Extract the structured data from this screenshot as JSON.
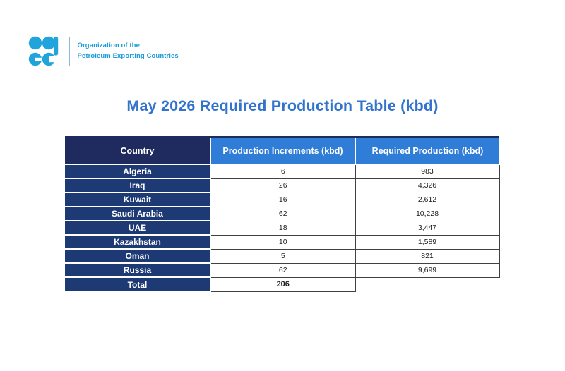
{
  "logo": {
    "line1": "Organization of the",
    "line2": "Petroleum Exporting Countries",
    "brand_color": "#1a9cd8"
  },
  "title": {
    "text": "May 2026 Required Production Table (kbd)",
    "color": "#3273cc"
  },
  "table": {
    "columns": [
      "Country",
      "Production Increments (kbd)",
      "Required Production (kbd)"
    ],
    "rows": [
      {
        "country": "Algeria",
        "increment": "6",
        "required": "983"
      },
      {
        "country": "Iraq",
        "increment": "26",
        "required": "4,326"
      },
      {
        "country": "Kuwait",
        "increment": "16",
        "required": "2,612"
      },
      {
        "country": "Saudi Arabia",
        "increment": "62",
        "required": "10,228"
      },
      {
        "country": "UAE",
        "increment": "18",
        "required": "3,447"
      },
      {
        "country": "Kazakhstan",
        "increment": "10",
        "required": "1,589"
      },
      {
        "country": "Oman",
        "increment": "5",
        "required": "821"
      },
      {
        "country": "Russia",
        "increment": "62",
        "required": "9,699"
      }
    ],
    "total_row": {
      "country": "Total",
      "increment": "206",
      "required": ""
    },
    "colors": {
      "header_country_bg": "#1f2b5e",
      "header_data_bg": "#2f7dd7",
      "row_country_bg": "#1e3a74",
      "header_text": "#ffffff",
      "body_text": "#1b1b1b"
    }
  },
  "chart_data": {
    "type": "table",
    "title": "May 2026 Required Production Table (kbd)",
    "columns": [
      "Country",
      "Production Increments (kbd)",
      "Required Production (kbd)"
    ],
    "categories": [
      "Algeria",
      "Iraq",
      "Kuwait",
      "Saudi Arabia",
      "UAE",
      "Kazakhstan",
      "Oman",
      "Russia"
    ],
    "series": [
      {
        "name": "Production Increments (kbd)",
        "values": [
          6,
          26,
          16,
          62,
          18,
          10,
          5,
          62
        ]
      },
      {
        "name": "Required Production (kbd)",
        "values": [
          983,
          4326,
          2612,
          10228,
          3447,
          1589,
          821,
          9699
        ]
      }
    ],
    "total": {
      "label": "Total",
      "production_increments": 206
    }
  }
}
